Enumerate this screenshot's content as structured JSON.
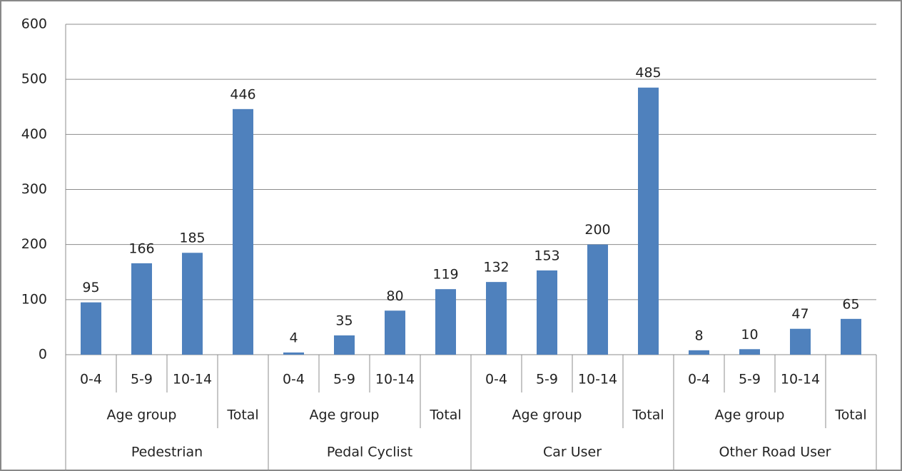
{
  "chart_data": {
    "type": "bar",
    "categories": [
      "0-4",
      "5-9",
      "10-14",
      null,
      "0-4",
      "5-9",
      "10-14",
      null,
      "0-4",
      "5-9",
      "10-14",
      null,
      "0-4",
      "5-9",
      "10-14",
      null
    ],
    "groups": [
      {
        "name": "Pedestrian",
        "subgroups": [
          "Age group",
          "Total"
        ]
      },
      {
        "name": "Pedal Cyclist",
        "subgroups": [
          "Age group",
          "Total"
        ]
      },
      {
        "name": "Car User",
        "subgroups": [
          "Age group",
          "Total"
        ]
      },
      {
        "name": "Other Road User",
        "subgroups": [
          "Age group",
          "Total"
        ]
      }
    ],
    "values": [
      95,
      166,
      185,
      446,
      4,
      35,
      80,
      119,
      132,
      153,
      200,
      485,
      8,
      10,
      47,
      65
    ],
    "color": "#4f81bd",
    "ylim": [
      0,
      600
    ],
    "yticks": [
      0,
      100,
      200,
      300,
      400,
      500,
      600
    ],
    "grid": true
  }
}
